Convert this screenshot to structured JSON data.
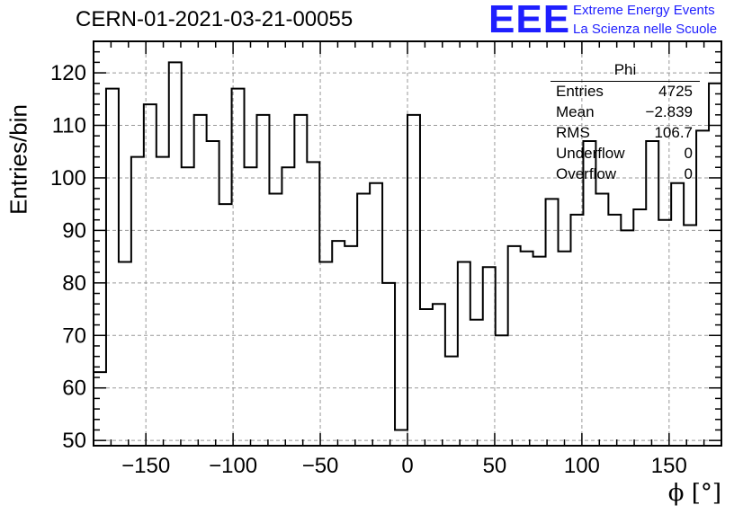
{
  "header": {
    "title": "CERN-01-2021-03-21-00055",
    "logo_text": "EEE",
    "logo_line1": "Extreme Energy Events",
    "logo_line2": "La Scienza nelle Scuole"
  },
  "stats_box": {
    "title": "Phi",
    "rows": [
      {
        "key": "Entries",
        "value": "4725"
      },
      {
        "key": "Mean",
        "value": "−2.839"
      },
      {
        "key": "RMS",
        "value": "106.7"
      },
      {
        "key": "Underflow",
        "value": "0"
      },
      {
        "key": "Overflow",
        "value": "0"
      }
    ]
  },
  "colors": {
    "logo": "#1f1fff",
    "line": "#000000",
    "grid": "#999999"
  },
  "chart_data": {
    "type": "bar",
    "style": "step-histogram",
    "title": "CERN-01-2021-03-21-00055",
    "xlabel": "ϕ [°]",
    "ylabel": "Entries/bin",
    "xlim": [
      -180,
      180
    ],
    "ylim": [
      49,
      126
    ],
    "grid": true,
    "bin_width": 7.2,
    "x_ticks": [
      -150,
      -100,
      -50,
      0,
      50,
      100,
      150
    ],
    "x_tick_labels": [
      "−150",
      "−100",
      "−50",
      "0",
      "50",
      "100",
      "150"
    ],
    "y_ticks": [
      50,
      60,
      70,
      80,
      90,
      100,
      110,
      120
    ],
    "y_tick_labels": [
      "50",
      "60",
      "70",
      "80",
      "90",
      "100",
      "110",
      "120"
    ],
    "values": [
      63,
      117,
      84,
      104,
      114,
      104,
      122,
      102,
      112,
      107,
      95,
      117,
      102,
      112,
      97,
      102,
      112,
      103,
      84,
      88,
      87,
      97,
      99,
      80,
      52,
      112,
      75,
      76,
      66,
      84,
      73,
      83,
      70,
      87,
      86,
      85,
      96,
      86,
      93,
      107,
      97,
      93,
      90,
      94,
      107,
      92,
      99,
      91,
      109,
      118
    ]
  }
}
